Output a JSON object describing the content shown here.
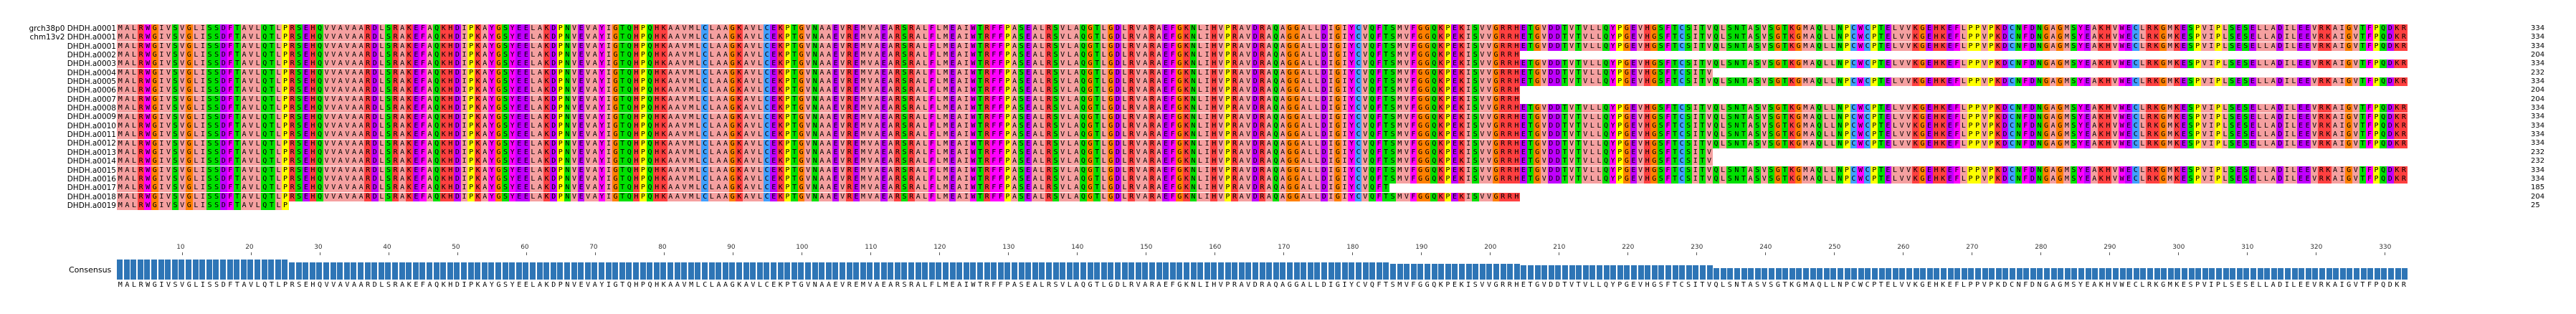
{
  "alignment": {
    "sequences": [
      {
        "name": "grch38p0 DHDH.a0001",
        "end": "334"
      },
      {
        "name": "chm13v2 DHDH.a0001",
        "end": "334"
      },
      {
        "name": "DHDH.a0001",
        "end": "334"
      },
      {
        "name": "DHDH.a0002",
        "end": "204"
      },
      {
        "name": "DHDH.a0003",
        "end": "334"
      },
      {
        "name": "DHDH.a0004",
        "end": "232"
      },
      {
        "name": "DHDH.a0005",
        "end": "334"
      },
      {
        "name": "DHDH.a0006",
        "end": "204"
      },
      {
        "name": "DHDH.a0007",
        "end": "204"
      },
      {
        "name": "DHDH.a0008",
        "end": "334"
      },
      {
        "name": "DHDH.a0009",
        "end": "334"
      },
      {
        "name": "DHDH.a0010",
        "end": "334"
      },
      {
        "name": "DHDH.a0011",
        "end": "334"
      },
      {
        "name": "DHDH.a0012",
        "end": "334"
      },
      {
        "name": "DHDH.a0013",
        "end": "232"
      },
      {
        "name": "DHDH.a0014",
        "end": "232"
      },
      {
        "name": "DHDH.a0015",
        "end": "334"
      },
      {
        "name": "DHDH.a0016",
        "end": "334"
      },
      {
        "name": "DHDH.a0017",
        "end": "185"
      },
      {
        "name": "DHDH.a0018",
        "end": "204"
      },
      {
        "name": "DHDH.a0019",
        "end": "25"
      }
    ],
    "consensus_label": "Consensus",
    "consensus_sequence": "MALRWGIVSVGLISSDFTAVLQTLPRSEHQVVAVAARDLSRAKEFAQKHDIPKAYGSYEELAKDPNVEVAYIGTQHPQHKAAVMLCLAAGKAVLCEKPTGVNAAEVREMVAEARSRALFLMEAIWTRFFPASEALRSVLAQGTLGDLRVARAEFGKNLIHVPRAVDRAQAGGALLDIGIYCVQFTSMVFGGQKPEKISVVGRRHETGVDDTVTVLLQYPGEVHGSFTCSITVQLSNTASVSGTKGMAQLLNPCWCPTELVVKGEHKEFLPPVPKDCNFDNGAGMSYEAKHVWECLRKGMKESPVIPLSESELLADILEEVRKAIGVTFPQDKR",
    "ruler_ticks": [
      "10",
      "20",
      "30",
      "40",
      "50",
      "60",
      "70",
      "80",
      "90",
      "100",
      "110",
      "120",
      "130",
      "140",
      "150",
      "160",
      "170",
      "180",
      "190",
      "200",
      "210",
      "220",
      "230",
      "240",
      "250",
      "260",
      "270",
      "280",
      "290",
      "300",
      "310",
      "320",
      "330"
    ]
  },
  "colors": {
    "hydrophobic": "#f5a0a0",
    "aromatic": "#ff00ff",
    "positive": "#ff4040",
    "negative": "#c000ff",
    "polar": "#00e000",
    "glycine": "#ff8000",
    "proline": "#ffff00",
    "cysteine": "#40a0ff",
    "consensus_bar": "#2e75b6"
  }
}
